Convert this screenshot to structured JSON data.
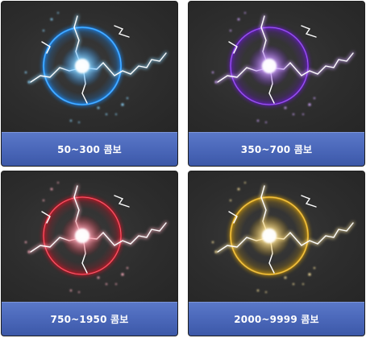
{
  "cards": [
    {
      "label": "50~300 콤보",
      "ring_color": "#1e90ff",
      "glow_color": "#8fd8ff"
    },
    {
      "label": "350~700 콤보",
      "ring_color": "#6a1ecc",
      "glow_color": "#d2a6ff"
    },
    {
      "label": "750~1950 콤보",
      "ring_color": "#d01828",
      "glow_color": "#ffb0c0"
    },
    {
      "label": "2000~9999 콤보",
      "ring_color": "#d8a010",
      "glow_color": "#ffe7a0"
    }
  ]
}
